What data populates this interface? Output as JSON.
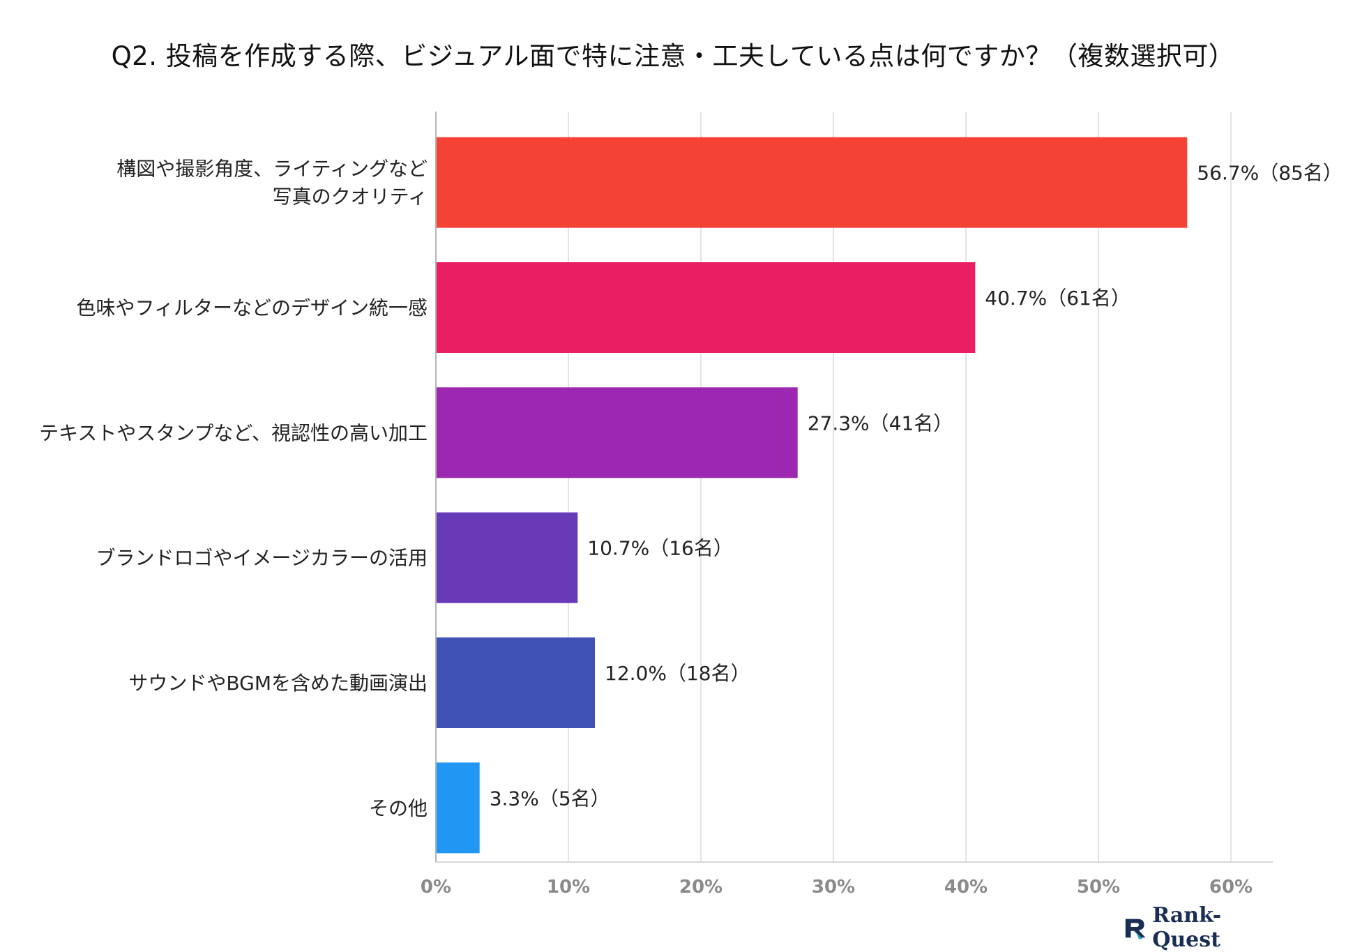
{
  "chart_data": {
    "type": "bar",
    "orientation": "horizontal",
    "title": "Q2. 投稿を作成する際、ビジュアル面で特に注意・工夫している点は何ですか？（複数選択可）",
    "categories": [
      [
        "構図や撮影角度、ライティングなど",
        "写真のクオリティ"
      ],
      [
        "色味やフィルターなどのデザイン統一感"
      ],
      [
        "テキストやスタンプなど、視認性の高い加工"
      ],
      [
        "ブランドロゴやイメージカラーの活用"
      ],
      [
        "サウンドやBGMを含めた動画演出"
      ],
      [
        "その他"
      ]
    ],
    "values": [
      56.7,
      40.7,
      27.3,
      10.7,
      12.0,
      3.3
    ],
    "value_labels": [
      "56.7%（85名）",
      "40.7%（61名）",
      "27.3%（41名）",
      "10.7%（16名）",
      "12.0%（18名）",
      "3.3%（5名）"
    ],
    "colors": [
      "#f44336",
      "#e91e63",
      "#9c27b0",
      "#673ab7",
      "#3f51b5",
      "#2196f3"
    ],
    "xlim": [
      0,
      60
    ],
    "xticks": [
      0,
      10,
      20,
      30,
      40,
      50,
      60
    ],
    "xtick_labels": [
      "0%",
      "10%",
      "20%",
      "30%",
      "40%",
      "50%",
      "60%"
    ],
    "xlabel": "",
    "ylabel": "",
    "grid": true
  },
  "brand": {
    "name": "Rank-Quest",
    "accent": "#1aa3c7",
    "color": "#1a2e55"
  }
}
